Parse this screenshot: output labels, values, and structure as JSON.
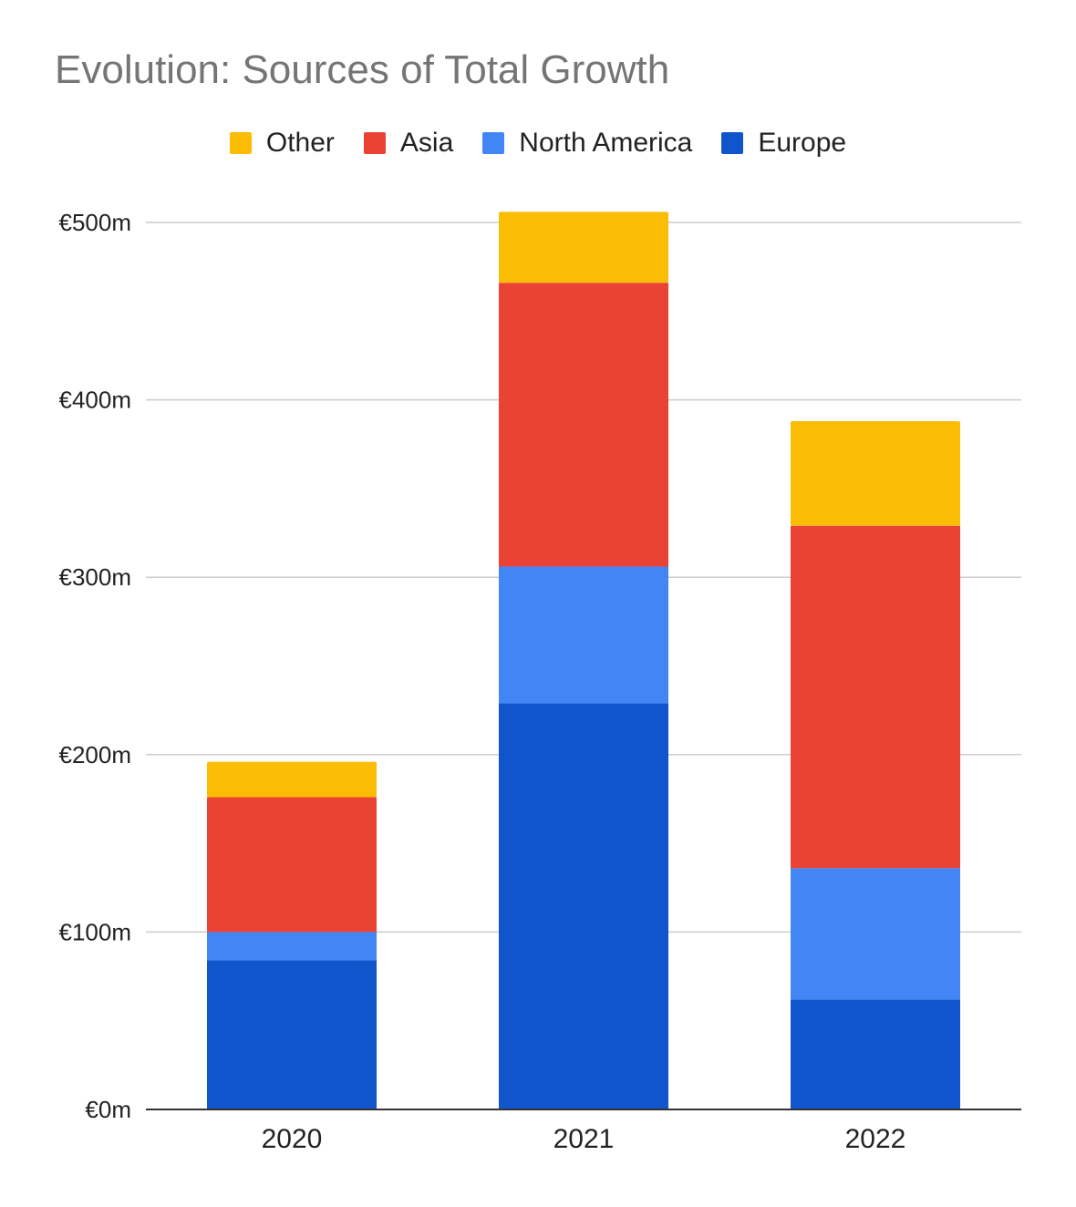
{
  "chart_data": {
    "type": "bar",
    "stacked": true,
    "title": "Evolution: Sources of Total Growth",
    "xlabel": "",
    "ylabel": "",
    "categories": [
      "2020",
      "2021",
      "2022"
    ],
    "series": [
      {
        "name": "Europe",
        "color": "#1155cc",
        "values": [
          84,
          229,
          62
        ]
      },
      {
        "name": "North America",
        "color": "#4285f4",
        "values": [
          16,
          77,
          74
        ]
      },
      {
        "name": "Asia",
        "color": "#ea4335",
        "values": [
          76,
          160,
          193
        ]
      },
      {
        "name": "Other",
        "color": "#fbbc04",
        "values": [
          20,
          40,
          59
        ]
      }
    ],
    "legend_order": [
      "Other",
      "Asia",
      "North America",
      "Europe"
    ],
    "legend_position": "top",
    "ylim": [
      0,
      500
    ],
    "yticks": [
      0,
      100,
      200,
      300,
      400,
      500
    ],
    "ytick_labels": [
      "€0m",
      "€100m",
      "€200m",
      "€300m",
      "€400m",
      "€500m"
    ],
    "grid": true
  }
}
